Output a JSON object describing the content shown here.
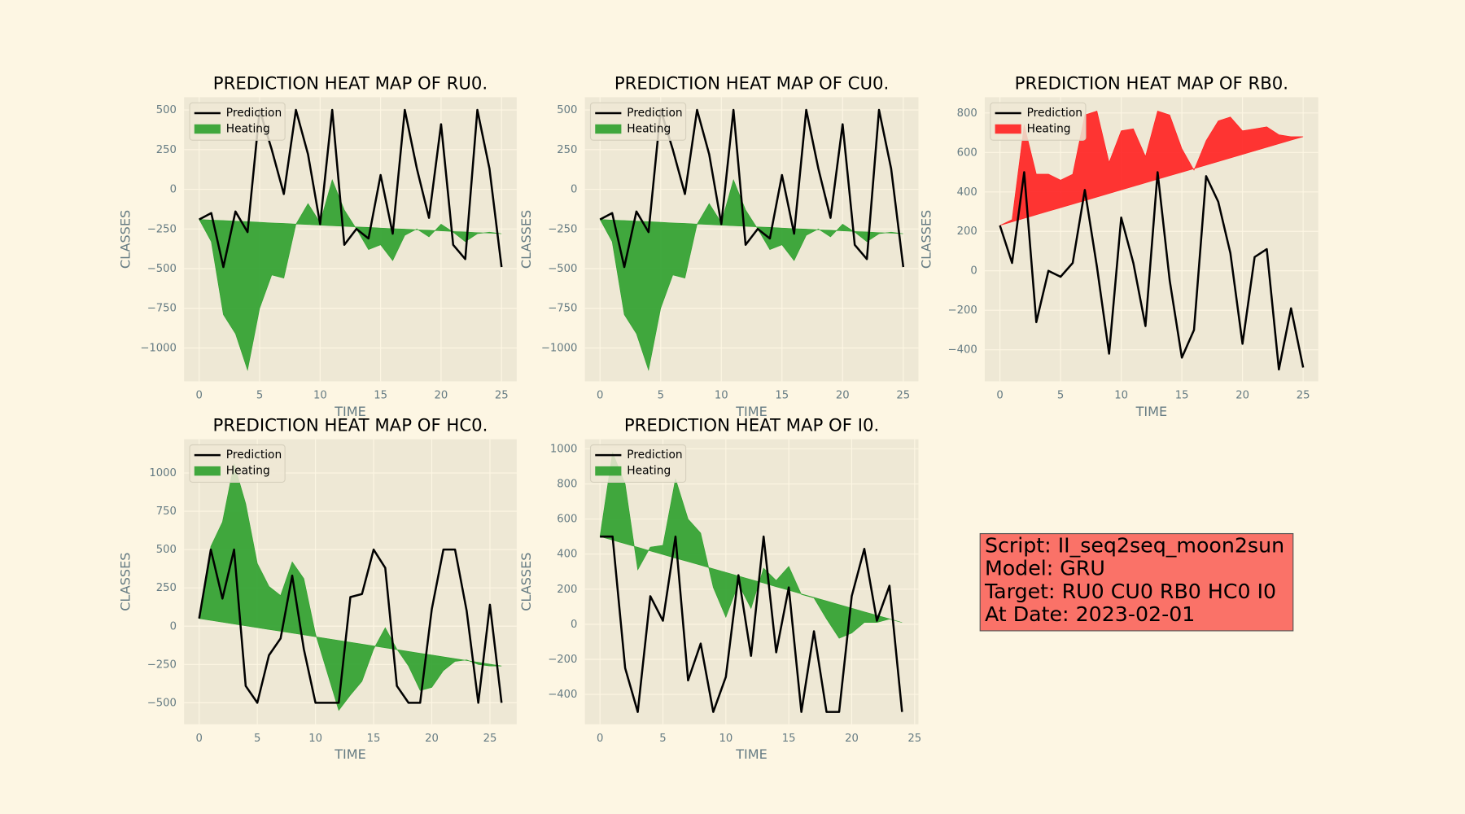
{
  "chart_data": [
    {
      "type": "line",
      "title": "PREDICTION HEAT MAP OF RU0.",
      "xlabel": "TIME",
      "ylabel": "CLASSES",
      "x": [
        0,
        1,
        2,
        3,
        4,
        5,
        6,
        7,
        8,
        9,
        10,
        11,
        12,
        13,
        14,
        15,
        16,
        17,
        18,
        19,
        20,
        21,
        22,
        23,
        24,
        25
      ],
      "xlim": [
        -1.25,
        26.25
      ],
      "ylim": [
        -1210,
        580
      ],
      "xticks": [
        0,
        5,
        10,
        15,
        20,
        25
      ],
      "yticks": [
        {
          "value": -1000,
          "label": "−1000"
        },
        {
          "value": -750,
          "label": "−750"
        },
        {
          "value": -500,
          "label": "−500"
        },
        {
          "value": -250,
          "label": "−250"
        },
        0,
        250,
        500
      ],
      "grid": true,
      "legend": "upper left",
      "series": [
        {
          "name": "Prediction",
          "color": "#000000",
          "values": [
            -190,
            -150,
            -490,
            -140,
            -270,
            500,
            250,
            -30,
            500,
            220,
            -220,
            500,
            -350,
            -250,
            -310,
            90,
            -280,
            500,
            130,
            -180,
            410,
            -350,
            -440,
            500,
            130,
            -490
          ]
        },
        {
          "name": "Heating",
          "color": "#2ca02c",
          "values": [
            -190,
            -330,
            -790,
            -910,
            -1140,
            -750,
            -540,
            -560,
            -220,
            -90,
            -210,
            60,
            -130,
            -250,
            -380,
            -350,
            -450,
            -290,
            -250,
            -300,
            -220,
            -270,
            -330,
            -280,
            -270,
            -280
          ],
          "baseline": [
            -190,
            -194,
            -197,
            -201,
            -204,
            -208,
            -212,
            -215,
            -219,
            -222,
            -226,
            -230,
            -233,
            -237,
            -240,
            -244,
            -248,
            -251,
            -255,
            -258,
            -262,
            -266,
            -269,
            -273,
            -276,
            -280
          ]
        }
      ]
    },
    {
      "type": "line",
      "title": "PREDICTION HEAT MAP OF CU0.",
      "xlabel": "TIME",
      "ylabel": "CLASSES",
      "x": [
        0,
        1,
        2,
        3,
        4,
        5,
        6,
        7,
        8,
        9,
        10,
        11,
        12,
        13,
        14,
        15,
        16,
        17,
        18,
        19,
        20,
        21,
        22,
        23,
        24,
        25
      ],
      "xlim": [
        -1.25,
        26.25
      ],
      "ylim": [
        -1210,
        580
      ],
      "xticks": [
        0,
        5,
        10,
        15,
        20,
        25
      ],
      "yticks": [
        {
          "value": -1000,
          "label": "−1000"
        },
        {
          "value": -750,
          "label": "−750"
        },
        {
          "value": -500,
          "label": "−500"
        },
        {
          "value": -250,
          "label": "−250"
        },
        0,
        250,
        500
      ],
      "grid": true,
      "legend": "upper left",
      "series": [
        {
          "name": "Prediction",
          "color": "#000000",
          "values": [
            -190,
            -150,
            -490,
            -140,
            -270,
            500,
            250,
            -30,
            500,
            220,
            -220,
            500,
            -350,
            -250,
            -310,
            90,
            -280,
            500,
            130,
            -180,
            410,
            -350,
            -440,
            500,
            130,
            -490
          ]
        },
        {
          "name": "Heating",
          "color": "#2ca02c",
          "values": [
            -190,
            -330,
            -790,
            -910,
            -1140,
            -750,
            -540,
            -560,
            -220,
            -90,
            -210,
            60,
            -130,
            -250,
            -380,
            -350,
            -450,
            -290,
            -250,
            -300,
            -220,
            -270,
            -330,
            -280,
            -270,
            -280
          ],
          "baseline": [
            -190,
            -194,
            -197,
            -201,
            -204,
            -208,
            -212,
            -215,
            -219,
            -222,
            -226,
            -230,
            -233,
            -237,
            -240,
            -244,
            -248,
            -251,
            -255,
            -258,
            -262,
            -266,
            -269,
            -273,
            -276,
            -280
          ]
        }
      ]
    },
    {
      "type": "line",
      "title": "PREDICTION HEAT MAP OF RB0.",
      "xlabel": "TIME",
      "ylabel": "CLASSES",
      "x": [
        0,
        1,
        2,
        3,
        4,
        5,
        6,
        7,
        8,
        9,
        10,
        11,
        12,
        13,
        14,
        15,
        16,
        17,
        18,
        19,
        20,
        21,
        22,
        23,
        24,
        25
      ],
      "xlim": [
        -1.25,
        26.25
      ],
      "ylim": [
        -560,
        880
      ],
      "xticks": [
        0,
        5,
        10,
        15,
        20,
        25
      ],
      "yticks": [
        {
          "value": -400,
          "label": "−400"
        },
        {
          "value": -200,
          "label": "−200"
        },
        0,
        200,
        400,
        600,
        800
      ],
      "grid": true,
      "legend": "upper left",
      "series": [
        {
          "name": "Prediction",
          "color": "#000000",
          "values": [
            230,
            40,
            500,
            -260,
            0,
            -30,
            40,
            410,
            20,
            -420,
            270,
            40,
            -280,
            500,
            -50,
            -440,
            -300,
            480,
            350,
            90,
            -370,
            70,
            110,
            -500,
            -190,
            -490
          ]
        },
        {
          "name": "Heating",
          "color": "#ff2020",
          "values": [
            230,
            260,
            740,
            490,
            490,
            460,
            490,
            790,
            810,
            550,
            710,
            720,
            580,
            810,
            790,
            620,
            510,
            660,
            760,
            780,
            710,
            720,
            730,
            690,
            680,
            680
          ],
          "baseline": [
            230,
            248,
            266,
            284,
            302,
            320,
            338,
            356,
            374,
            392,
            410,
            428,
            446,
            464,
            482,
            500,
            518,
            536,
            554,
            572,
            590,
            608,
            626,
            644,
            662,
            680
          ]
        }
      ]
    },
    {
      "type": "line",
      "title": "PREDICTION HEAT MAP OF HC0.",
      "xlabel": "TIME",
      "ylabel": "CLASSES",
      "x": [
        0,
        1,
        2,
        3,
        4,
        5,
        6,
        7,
        8,
        9,
        10,
        11,
        12,
        13,
        14,
        15,
        16,
        17,
        18,
        19,
        20,
        21,
        22,
        23,
        24,
        25,
        26
      ],
      "xlim": [
        -1.3,
        27.3
      ],
      "ylim": [
        -640,
        1220
      ],
      "xticks": [
        0,
        5,
        10,
        15,
        20,
        25
      ],
      "yticks": [
        {
          "value": -500,
          "label": "−500"
        },
        {
          "value": -250,
          "label": "−250"
        },
        0,
        250,
        500,
        750,
        1000
      ],
      "grid": true,
      "legend": "upper left",
      "series": [
        {
          "name": "Prediction",
          "color": "#000000",
          "values": [
            50,
            500,
            180,
            500,
            -390,
            -500,
            -190,
            -80,
            330,
            -150,
            -500,
            -500,
            -500,
            190,
            210,
            500,
            380,
            -390,
            -500,
            -500,
            110,
            500,
            500,
            100,
            -500,
            140,
            -500
          ]
        },
        {
          "name": "Heating",
          "color": "#2ca02c",
          "values": [
            50,
            520,
            680,
            1060,
            800,
            410,
            260,
            200,
            420,
            310,
            -50,
            -300,
            -550,
            -450,
            -360,
            -150,
            -10,
            -150,
            -260,
            -420,
            -400,
            -290,
            -230,
            -220,
            -250,
            -260,
            -260
          ],
          "baseline": [
            50,
            38,
            26,
            14,
            2,
            -10,
            -22,
            -33,
            -45,
            -57,
            -69,
            -81,
            -93,
            -105,
            -117,
            -129,
            -141,
            -153,
            -165,
            -177,
            -188,
            -200,
            -212,
            -224,
            -236,
            -248,
            -260
          ]
        }
      ]
    },
    {
      "type": "line",
      "title": "PREDICTION HEAT MAP OF I0.",
      "xlabel": "TIME",
      "ylabel": "CLASSES",
      "x": [
        0,
        1,
        2,
        3,
        4,
        5,
        6,
        7,
        8,
        9,
        10,
        11,
        12,
        13,
        14,
        15,
        16,
        17,
        18,
        19,
        20,
        21,
        22,
        23,
        24
      ],
      "xlim": [
        -1.2,
        25.3
      ],
      "ylim": [
        -570,
        1055
      ],
      "xticks": [
        0,
        5,
        10,
        15,
        20,
        25
      ],
      "yticks": [
        {
          "value": -400,
          "label": "−400"
        },
        {
          "value": -200,
          "label": "−200"
        },
        0,
        200,
        400,
        600,
        800,
        1000
      ],
      "grid": true,
      "legend": "upper left",
      "series": [
        {
          "name": "Prediction",
          "color": "#000000",
          "values": [
            500,
            500,
            -250,
            -500,
            160,
            20,
            500,
            -320,
            -110,
            -500,
            -300,
            280,
            -180,
            500,
            -160,
            210,
            -500,
            -40,
            -500,
            -500,
            160,
            430,
            20,
            220,
            -500
          ]
        },
        {
          "name": "Heating",
          "color": "#2ca02c",
          "values": [
            500,
            980,
            800,
            310,
            440,
            450,
            830,
            600,
            520,
            210,
            40,
            230,
            90,
            320,
            250,
            330,
            170,
            150,
            30,
            -80,
            -50,
            10,
            10,
            30,
            10
          ],
          "baseline": [
            500,
            480,
            459,
            439,
            418,
            398,
            377,
            357,
            337,
            316,
            296,
            275,
            255,
            235,
            214,
            194,
            173,
            153,
            133,
            112,
            92,
            71,
            51,
            31,
            10
          ]
        }
      ]
    }
  ],
  "textbox": {
    "lines": [
      "Script: II_seq2seq_moon2sun",
      "Model: GRU",
      "Target: RU0 CU0 RB0 HC0 I0",
      "At Date: 2023-02-01"
    ],
    "color": "#fa7268"
  }
}
